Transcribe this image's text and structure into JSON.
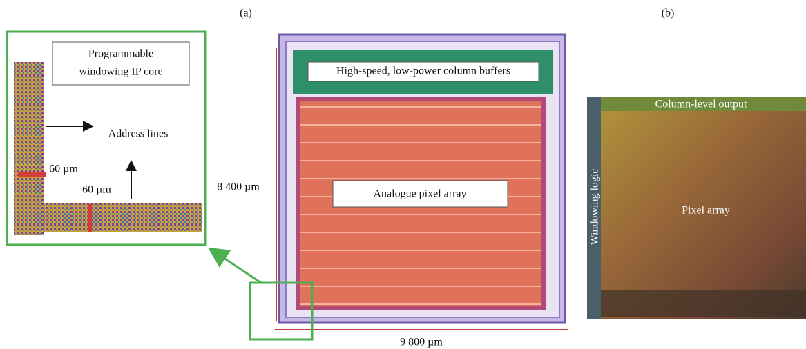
{
  "panel_labels": {
    "a": "(a)",
    "b": "(b)"
  },
  "inset": {
    "title_lines": [
      "Programmable",
      "windowing IP core"
    ],
    "address_lines": "Address lines",
    "dim_vertical": "60 µm",
    "dim_horizontal": "60 µm"
  },
  "chip": {
    "height": "8 400 µm",
    "width": "9 800 µm",
    "column_buffers": "High-speed, low-power column buffers",
    "pixel_array": "Analogue pixel array"
  },
  "photo": {
    "column_output": "Column-level output",
    "windowing_logic": "Windowing logic",
    "pixel_array": "Pixel array"
  }
}
